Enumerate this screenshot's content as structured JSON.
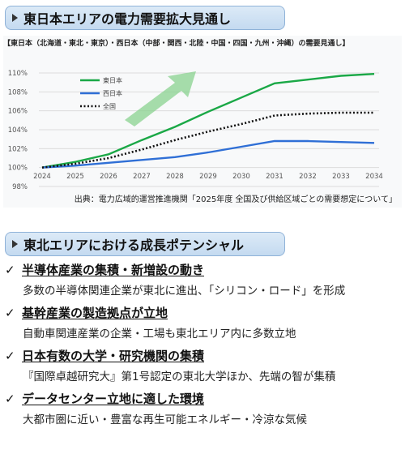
{
  "banner1": {
    "title": "東日本エリアの電力需要拡大見通し"
  },
  "banner2": {
    "title": "東北エリアにおける成長ポテンシャル"
  },
  "chart_subtitle": "【東日本（北海道・東北・東京）・西日本（中部・関西・北陸・中国・四国・九州・沖縄）の需要見通し】",
  "chart_source": "出典：電力広域的運営推進機関「2025年度 全国及び供給区域ごとの需要想定について」",
  "chart_data": {
    "type": "line",
    "x": [
      2024,
      2025,
      2026,
      2027,
      2028,
      2029,
      2030,
      2031,
      2032,
      2033,
      2034
    ],
    "ylim": [
      98,
      110
    ],
    "yticks": [
      "98%",
      "100%",
      "102%",
      "104%",
      "106%",
      "108%",
      "110%"
    ],
    "ytick_values": [
      98,
      100,
      102,
      104,
      106,
      108,
      110
    ],
    "grid": true,
    "legend": "top-left",
    "series": [
      {
        "name": "東日本",
        "color": "#1aa846",
        "style": "solid",
        "values": [
          100.0,
          100.6,
          101.4,
          102.9,
          104.3,
          105.9,
          107.4,
          108.9,
          109.3,
          109.7,
          109.9
        ]
      },
      {
        "name": "西日本",
        "color": "#2f6fd6",
        "style": "solid",
        "values": [
          100.0,
          100.2,
          100.5,
          100.8,
          101.1,
          101.6,
          102.2,
          102.8,
          102.8,
          102.7,
          102.6
        ]
      },
      {
        "name": "全国",
        "color": "#111111",
        "style": "dotted",
        "values": [
          100.0,
          100.4,
          101.0,
          101.9,
          102.9,
          103.8,
          104.6,
          105.5,
          105.7,
          105.8,
          105.8
        ]
      }
    ]
  },
  "points": [
    {
      "title": "半導体産業の集積・新増設の動き",
      "desc": "多数の半導体関連企業が東北に進出、「シリコン・ロード」を形成"
    },
    {
      "title": "基幹産業の製造拠点が立地",
      "desc": "自動車関連産業の企業・工場も東北エリア内に多数立地"
    },
    {
      "title": "日本有数の大学・研究機関の集積",
      "desc": "『国際卓越研究大』第1号認定の東北大学ほか、先端の智が集積"
    },
    {
      "title": "データセンター立地に適した環境",
      "desc": "大都市圏に近い・豊富な再生可能エネルギー・冷涼な気候"
    }
  ],
  "check_glyph": "✓"
}
